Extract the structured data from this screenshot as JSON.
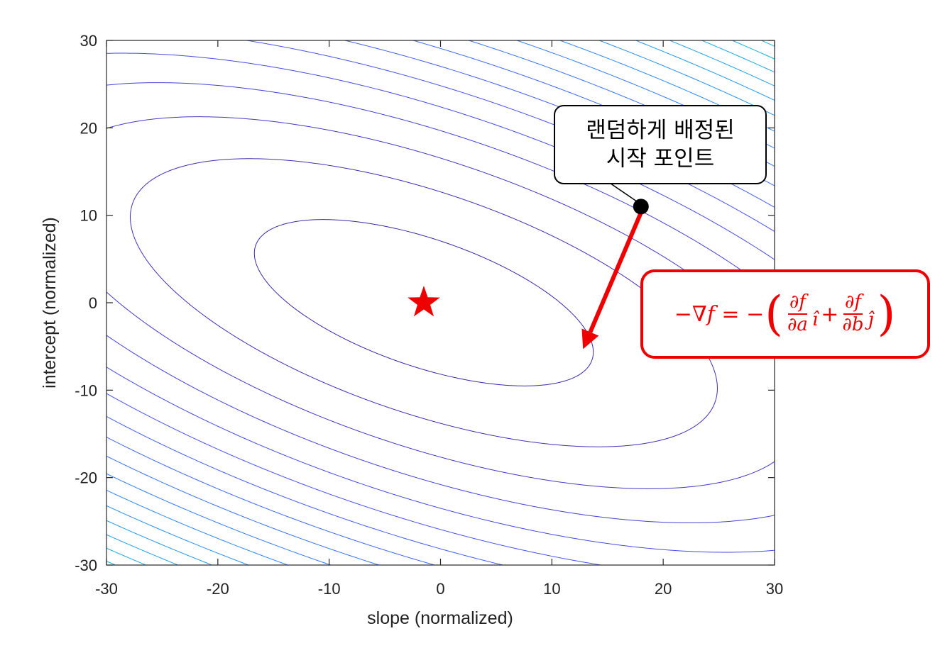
{
  "chart_data": {
    "type": "contour",
    "title": "",
    "xlabel": "slope (normalized)",
    "ylabel": "intercept (normalized)",
    "xlim": [
      -30,
      30
    ],
    "ylim": [
      -30,
      30
    ],
    "xticks": [
      -30,
      -20,
      -10,
      0,
      10,
      20,
      30
    ],
    "yticks": [
      -30,
      -20,
      -10,
      0,
      10,
      20,
      30
    ],
    "grid": false,
    "colormap": "parula",
    "contour": {
      "center": [
        -1.5,
        0
      ],
      "quadratic_form": {
        "a": 1.0,
        "b": 1.9,
        "c": 2.56
      },
      "levels": [
        150,
        450,
        750,
        1050,
        1350,
        1650,
        1950,
        2250,
        2550,
        2850,
        3150,
        3450,
        3750,
        4050,
        4350,
        4650,
        4950,
        5250,
        5550,
        5850,
        6150,
        6450,
        6750,
        7050,
        7350,
        7650,
        7950,
        8250,
        8550,
        8850,
        9150,
        9450,
        9750,
        10050,
        10350,
        10650
      ],
      "color_range": [
        150,
        10650
      ]
    },
    "minimum_marker": {
      "x": -1.5,
      "y": 0,
      "shape": "star",
      "color": "#ee0000"
    },
    "start_point": {
      "x": 18,
      "y": 11,
      "color": "#000000"
    },
    "gradient_arrow": {
      "from": [
        18,
        10.3
      ],
      "to": [
        12.8,
        -5.3
      ],
      "color": "#ee0000"
    },
    "annotations": {
      "start_label_line1": "랜덤하게 배정된",
      "start_label_line2": "시작 포인트",
      "formula": {
        "lhs": "−∇f = −",
        "open_paren": "(",
        "frac1_num": "∂f",
        "frac1_den": "∂a",
        "i_hat": "î",
        "plus": "+",
        "frac2_num": "∂f",
        "frac2_den": "∂b",
        "j_hat": "ĵ",
        "close_paren": ")"
      }
    }
  }
}
